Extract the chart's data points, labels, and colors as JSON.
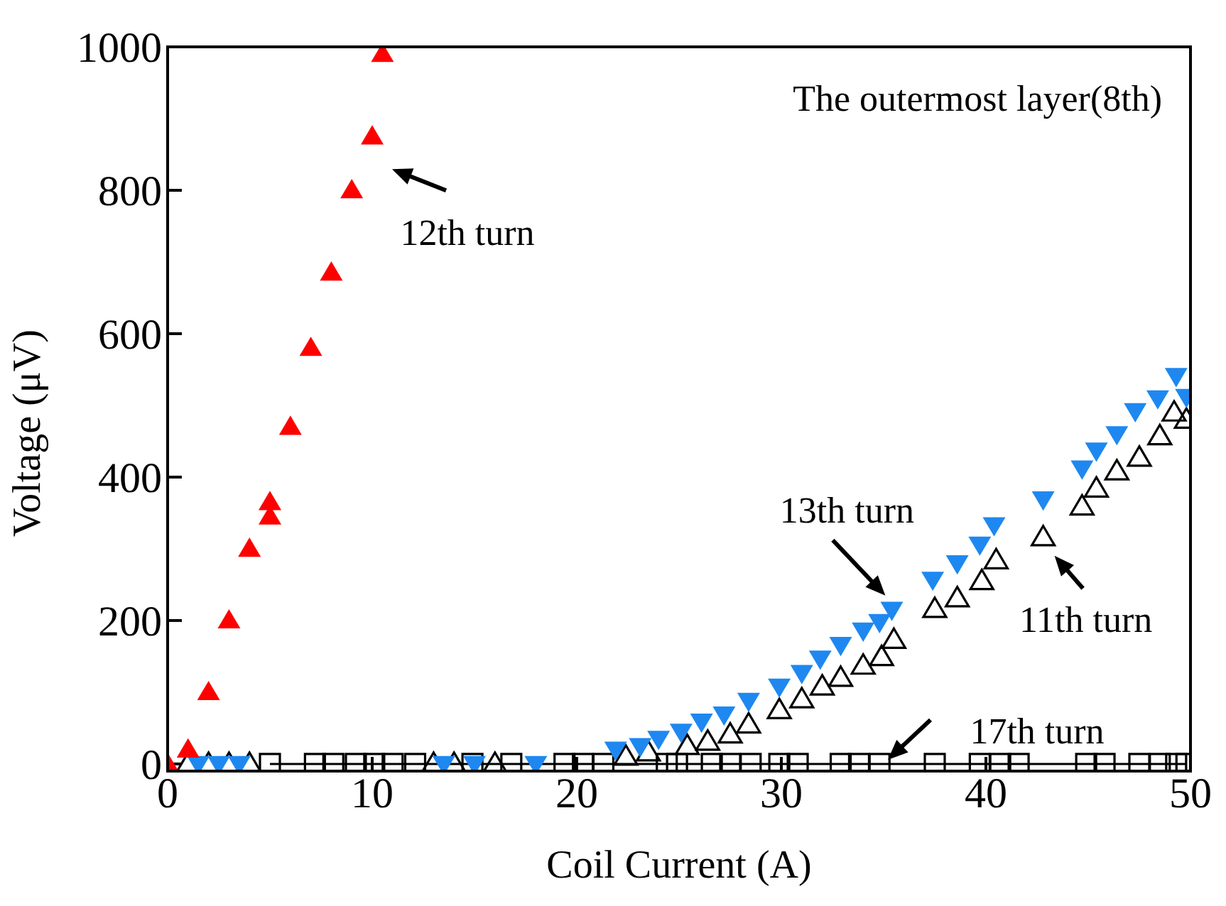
{
  "chart_data": {
    "type": "scatter",
    "xlabel": "Coil Current (A)",
    "ylabel": "Voltage (μV)",
    "xlim": [
      0,
      50
    ],
    "ylim": [
      -10,
      1000
    ],
    "xticks": [
      0,
      10,
      20,
      30,
      40,
      50
    ],
    "yticks": [
      0,
      200,
      400,
      600,
      800,
      1000
    ],
    "annotations": [
      "The outermost layer(8th)",
      {
        "text": "12th turn",
        "x": 10,
        "y": 875
      },
      {
        "text": "13th turn",
        "x": 35.5,
        "y": 215
      },
      {
        "text": "11th turn",
        "x": 42.8,
        "y": 316
      },
      {
        "text": "17th turn",
        "x": 35,
        "y": 0
      }
    ],
    "series": [
      {
        "type": "line",
        "marker": "square-open",
        "color": "#000000",
        "x": [
          5,
          7.2,
          8.1,
          9.2,
          10.1,
          11,
          12.1,
          14.9,
          16.8,
          19.4,
          20.3,
          21.3,
          24.4,
          24.9,
          26.6,
          27.5,
          28.5,
          29.9,
          30.8,
          32.9,
          33.8,
          34.8,
          37.5,
          39.7,
          40.7,
          41.6,
          44.9,
          45.8,
          47.5,
          48.5,
          49.3,
          49.8
        ],
        "values": [
          0,
          0,
          0,
          0,
          0,
          0,
          0,
          0,
          0,
          0,
          0,
          0,
          0,
          0,
          0,
          0,
          0,
          0,
          0,
          0,
          0,
          0,
          0,
          0,
          0,
          0,
          0,
          0,
          0,
          0,
          0,
          0
        ]
      },
      {
        "marker": "triangle-open",
        "color": "#000000",
        "x": [
          1,
          2,
          3,
          4,
          13,
          14,
          16,
          22.4,
          23.5,
          25.4,
          26.4,
          27.5,
          28.4,
          29.9,
          31,
          32,
          32.9,
          34,
          34.9,
          35.5,
          37.5,
          38.6,
          39.8,
          40.5,
          42.8,
          44.7,
          45.4,
          46.4,
          47.5,
          48.5,
          49.2,
          49.8
        ],
        "values": [
          0,
          0,
          0,
          0,
          0,
          0,
          0,
          10,
          16,
          25,
          31,
          41,
          55,
          75,
          90,
          108,
          120,
          137,
          149,
          173,
          216,
          231,
          255,
          284,
          316,
          359,
          384,
          408,
          427,
          457,
          490,
          480
        ]
      },
      {
        "marker": "triangle-down",
        "color": "#1e88f0",
        "x": [
          1.5,
          2.5,
          3.5,
          13.5,
          15,
          18,
          21.9,
          23.1,
          24,
          25.1,
          26.1,
          27.2,
          28.4,
          29.9,
          31,
          31.9,
          32.9,
          34,
          34.8,
          35.4,
          37.4,
          38.6,
          39.7,
          40.4,
          42.8,
          44.7,
          45.4,
          46.4,
          47.3,
          48.4,
          49.3,
          49.8
        ],
        "values": [
          0,
          0,
          0,
          0,
          0,
          0,
          20,
          25,
          35,
          45,
          59,
          69,
          88,
          108,
          127,
          147,
          166,
          186,
          198,
          215,
          257,
          280,
          306,
          333,
          369,
          412,
          437,
          460,
          492,
          510,
          541,
          512
        ]
      },
      {
        "marker": "triangle",
        "color": "#ff0000",
        "x": [
          0,
          1,
          2,
          3,
          4,
          5,
          5,
          6,
          7,
          8,
          9,
          10,
          10.5
        ],
        "values": [
          0,
          20,
          100,
          200,
          300,
          345,
          365,
          470,
          580,
          685,
          800,
          875,
          990
        ]
      }
    ]
  }
}
